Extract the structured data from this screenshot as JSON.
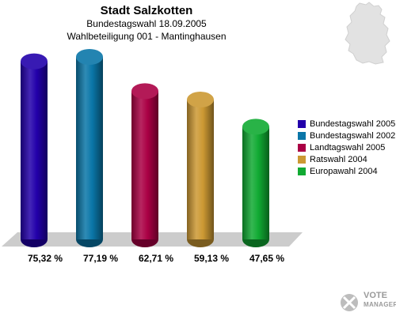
{
  "header": {
    "title": "Stadt Salzkotten",
    "subtitle": "Bundestagswahl 18.09.2005",
    "subtitle2": "Wahlbeteiligung 001 - Mantinghausen"
  },
  "logo": {
    "line1": "VOTE",
    "line2": "MANAGER"
  },
  "chart_data": {
    "type": "bar",
    "title": "Stadt Salzkotten",
    "categories": [
      "Bundestagswahl 2005",
      "Bundestagswahl 2002",
      "Landtagswahl 2005",
      "Ratswahl 2004",
      "Europawahl 2004"
    ],
    "values": [
      75.32,
      77.19,
      62.71,
      59.13,
      47.65
    ],
    "value_labels": [
      "75,32 %",
      "77,19 %",
      "62,71 %",
      "59,13 %",
      "47,65 %"
    ],
    "colors": [
      "#2200aa",
      "#0a76a8",
      "#aa0044",
      "#cc9933",
      "#11aa33"
    ],
    "ylim": [
      0,
      80
    ],
    "grid": false,
    "legend": "right",
    "style": "3d-cylinder"
  }
}
